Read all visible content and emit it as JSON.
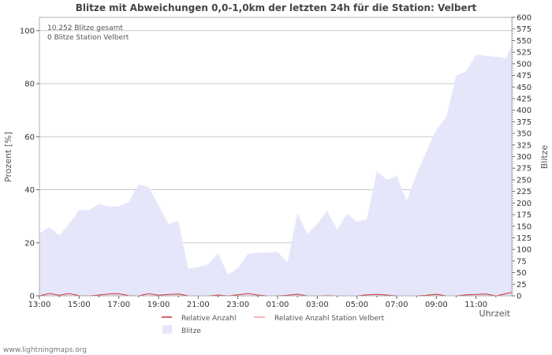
{
  "chart_data": {
    "type": "area",
    "title": "Blitze mit Abweichungen 0,0-1,0km der letzten 24h für die Station: Velbert",
    "info_lines": [
      "10.252 Blitze gesamt",
      "0 Blitze Station Velbert"
    ],
    "xlabel": "Uhrzeit",
    "ylabel_left": "Prozent   [%]",
    "ylabel_right": "Blitze",
    "x_tick_labels": [
      "13:00",
      "15:00",
      "17:00",
      "19:00",
      "21:00",
      "23:00",
      "01:00",
      "03:00",
      "05:00",
      "07:00",
      "09:00",
      "11:00"
    ],
    "x_range_hours": [
      0,
      23.8
    ],
    "y_left": {
      "range": [
        0,
        105
      ],
      "ticks": [
        0,
        20,
        40,
        60,
        80,
        100
      ]
    },
    "y_right": {
      "range": [
        0,
        600
      ],
      "ticks": [
        0,
        25,
        50,
        75,
        100,
        125,
        150,
        175,
        200,
        225,
        250,
        275,
        300,
        325,
        350,
        375,
        400,
        425,
        450,
        475,
        500,
        525,
        550,
        575,
        600
      ]
    },
    "series": [
      {
        "name": "Blitze",
        "axis": "right",
        "color": "#e6e6fb",
        "x": [
          0,
          0.5,
          1,
          1.5,
          2,
          2.5,
          3,
          3.5,
          4,
          4.5,
          5,
          5.5,
          6,
          6.5,
          7,
          7.5,
          8,
          8.5,
          9,
          9.5,
          10,
          10.5,
          11,
          11.5,
          12,
          12.5,
          13,
          13.5,
          14,
          14.5,
          15,
          15.5,
          16,
          16.5,
          17,
          17.5,
          18,
          18.5,
          19,
          19.5,
          20,
          20.5,
          21,
          21.5,
          22,
          22.5,
          23,
          23.5,
          23.8
        ],
        "values": [
          135,
          148,
          130,
          155,
          185,
          185,
          198,
          192,
          193,
          202,
          240,
          235,
          195,
          155,
          162,
          58,
          62,
          68,
          92,
          45,
          60,
          90,
          93,
          93,
          95,
          72,
          178,
          133,
          155,
          183,
          143,
          177,
          160,
          165,
          268,
          250,
          258,
          205,
          262,
          312,
          358,
          385,
          475,
          483,
          520,
          517,
          515,
          512,
          540
        ]
      },
      {
        "name": "Relative Anzahl",
        "axis": "left",
        "color": "#cc3333",
        "x": [
          0,
          0.5,
          1,
          1.5,
          2,
          2.5,
          3,
          3.5,
          4,
          4.5,
          5,
          5.5,
          6,
          6.5,
          7,
          7.5,
          8,
          8.5,
          9,
          9.5,
          10,
          10.5,
          11,
          11.5,
          12,
          12.5,
          13,
          13.5,
          14,
          14.5,
          15,
          15.5,
          16,
          16.5,
          17,
          17.5,
          18,
          18.5,
          19,
          19.5,
          20,
          20.5,
          21,
          21.5,
          22,
          22.5,
          23,
          23.5,
          23.8
        ],
        "values": [
          0,
          0.9,
          0.2,
          0.9,
          0.1,
          0,
          0.3,
          0.7,
          0.8,
          0.1,
          0,
          0.8,
          0.2,
          0.5,
          0.7,
          0,
          0,
          0,
          0.3,
          0,
          0.4,
          0.9,
          0.3,
          0,
          0,
          0.2,
          0.6,
          0,
          0,
          0.1,
          0,
          0,
          0,
          0.4,
          0.6,
          0.3,
          0,
          0,
          0,
          0.2,
          0.6,
          0,
          0,
          0.4,
          0.5,
          0.7,
          0,
          0.8,
          1.3
        ]
      },
      {
        "name": "Relative Anzahl Station Velbert",
        "axis": "left",
        "color": "#f29a9a",
        "x": [
          0,
          23.8
        ],
        "values": [
          0,
          0
        ]
      }
    ],
    "legend": [
      {
        "label": "Relative Anzahl",
        "kind": "line",
        "color": "#cc3333"
      },
      {
        "label": "Relative Anzahl Station Velbert",
        "kind": "line",
        "color": "#f29a9a"
      },
      {
        "label": "Blitze",
        "kind": "box",
        "color": "#e6e6fb"
      }
    ],
    "legend_position": "bottom",
    "grid": true
  },
  "footer": {
    "source": "www.lightningmaps.org"
  }
}
